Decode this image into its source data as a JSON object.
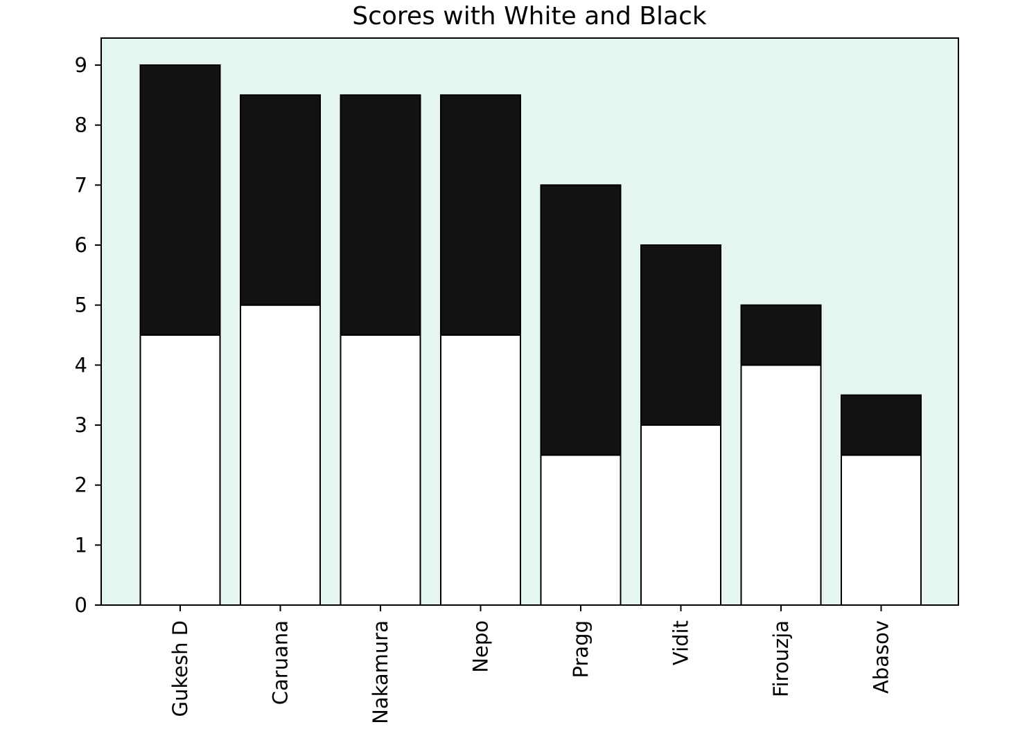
{
  "chart_data": {
    "type": "bar",
    "stacked": true,
    "title": "Scores with White and Black",
    "xlabel": "",
    "ylabel": "",
    "categories": [
      "Gukesh D",
      "Caruana",
      "Nakamura",
      "Nepo",
      "Pragg",
      "Vidit",
      "Firouzja",
      "Abasov"
    ],
    "series": [
      {
        "values": [
          4.5,
          5,
          4.5,
          4.5,
          2.5,
          3,
          4,
          2.5
        ],
        "color": "#ffffff"
      },
      {
        "values": [
          4.5,
          3.5,
          4,
          4,
          4.5,
          3,
          1,
          1
        ],
        "color": "#121212"
      }
    ],
    "ylim": [
      0,
      9.45
    ],
    "yticks": [
      0,
      1,
      2,
      3,
      4,
      5,
      6,
      7,
      8,
      9
    ],
    "xtick_rotation": 90,
    "grid": false,
    "legend": "none",
    "plot_background": "#e5f5ef",
    "bar_edge_color": "#000000"
  }
}
